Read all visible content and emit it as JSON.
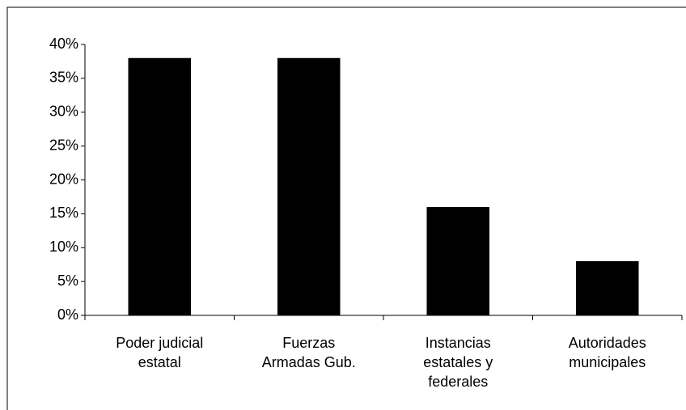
{
  "chart_data": {
    "type": "bar",
    "categories": [
      "Poder judicial estatal",
      "Fuerzas Armadas Gub.",
      "Instancias estatales y federales",
      "Autoridades municipales"
    ],
    "values": [
      38,
      38,
      16,
      8
    ],
    "color": "#000000",
    "ylim": [
      0,
      40
    ],
    "yticks": [
      {
        "value": 0,
        "label": "0%"
      },
      {
        "value": 5,
        "label": "5%"
      },
      {
        "value": 10,
        "label": "10%"
      },
      {
        "value": 15,
        "label": "15%"
      },
      {
        "value": 20,
        "label": "20%"
      },
      {
        "value": 25,
        "label": "25%"
      },
      {
        "value": 30,
        "label": "30%"
      },
      {
        "value": 35,
        "label": "35%"
      },
      {
        "value": 40,
        "label": "40%"
      }
    ],
    "grid": false
  }
}
